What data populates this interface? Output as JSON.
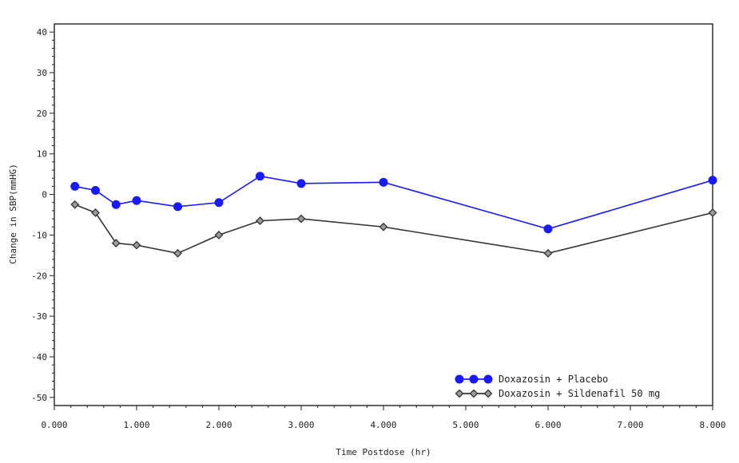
{
  "chart_data": {
    "type": "line",
    "title": "",
    "xlabel": "Time Postdose (hr)",
    "ylabel": "Change in SBP(mmHG)",
    "xlim": [
      0,
      8
    ],
    "ylim": [
      -52,
      42
    ],
    "x_ticks": [
      0,
      1,
      2,
      3,
      4,
      5,
      6,
      7,
      8
    ],
    "x_tick_labels": [
      "0.000",
      "1.000",
      "2.000",
      "3.000",
      "4.000",
      "5.000",
      "6.000",
      "7.000",
      "8.000"
    ],
    "y_ticks": [
      40,
      30,
      20,
      10,
      0,
      -10,
      -20,
      -30,
      -40,
      -50
    ],
    "y_tick_labels": [
      "40",
      "30",
      "20",
      "10",
      "0",
      "-10",
      "-20",
      "-30",
      "-40",
      "-50"
    ],
    "grid": false,
    "legend_position": "bottom-right",
    "series": [
      {
        "name": "Doxazosin + Placebo",
        "color": "#1a1aff",
        "marker": "circle",
        "x": [
          0.25,
          0.5,
          0.75,
          1.0,
          1.5,
          2.0,
          2.5,
          3.0,
          4.0,
          6.0,
          8.0
        ],
        "values": [
          2,
          1,
          -2.5,
          -1.5,
          -3,
          -2,
          4.5,
          2.7,
          3,
          -8.5,
          3.5
        ]
      },
      {
        "name": "Doxazosin + Sildenafil 50 mg",
        "color": "#333333",
        "marker": "diamond",
        "x": [
          0.25,
          0.5,
          0.75,
          1.0,
          1.5,
          2.0,
          2.5,
          3.0,
          4.0,
          6.0,
          8.0
        ],
        "values": [
          -2.5,
          -4.5,
          -12,
          -12.5,
          -14.5,
          -10,
          -6.5,
          -6,
          -8,
          -14.5,
          -4.5
        ]
      }
    ]
  }
}
